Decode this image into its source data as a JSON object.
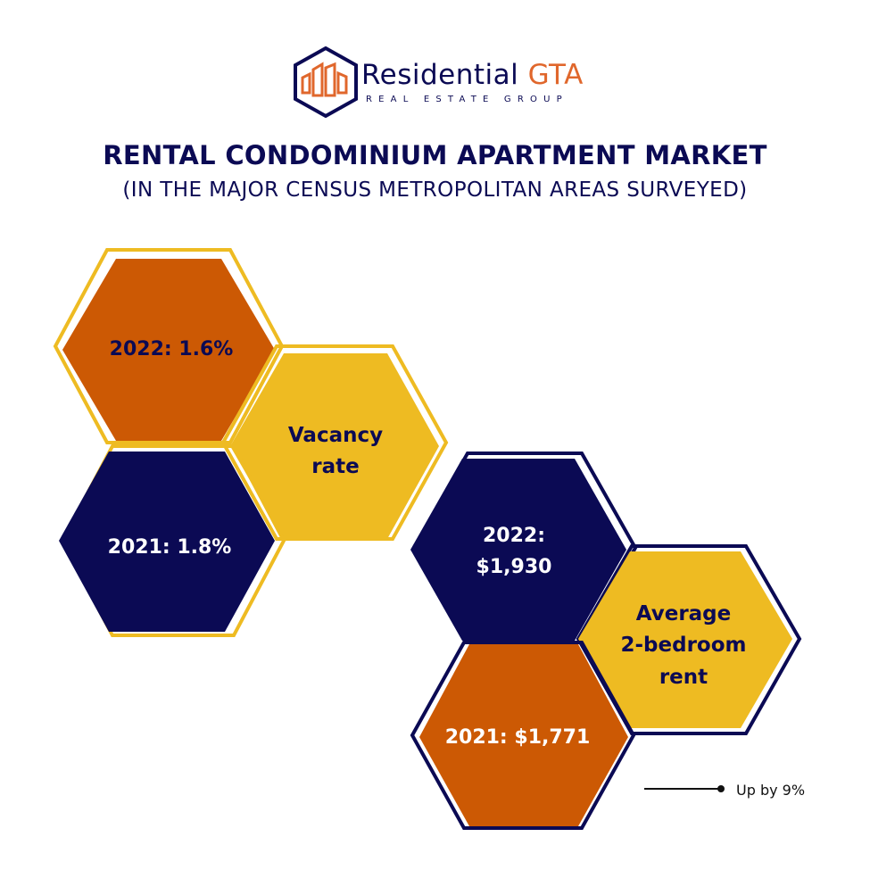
{
  "brand": {
    "name_main": "Residential",
    "name_accent": "GTA",
    "tagline": "REAL ESTATE GROUP",
    "logo_icon": "building-hexagon-logo"
  },
  "title": "RENTAL CONDOMINIUM APARTMENT MARKET",
  "subtitle": "(IN THE MAJOR CENSUS METROPOLITAN AREAS SURVEYED)",
  "colors": {
    "navy": "#0b0a54",
    "orange": "#cc5904",
    "gold": "#eebb22",
    "brand_orange": "#e0672c"
  },
  "vacancy": {
    "y2022": "2022: 1.6%",
    "label_line1": "Vacancy",
    "label_line2": "rate",
    "y2021": "2021: 1.8%"
  },
  "rent": {
    "y2022_line1": "2022:",
    "y2022_line2": "$1,930",
    "label_line1": "Average",
    "label_line2": "2-bedroom",
    "label_line3": "rent",
    "y2021": "2021: $1,771"
  },
  "legend": {
    "label": "Up by 9%"
  }
}
